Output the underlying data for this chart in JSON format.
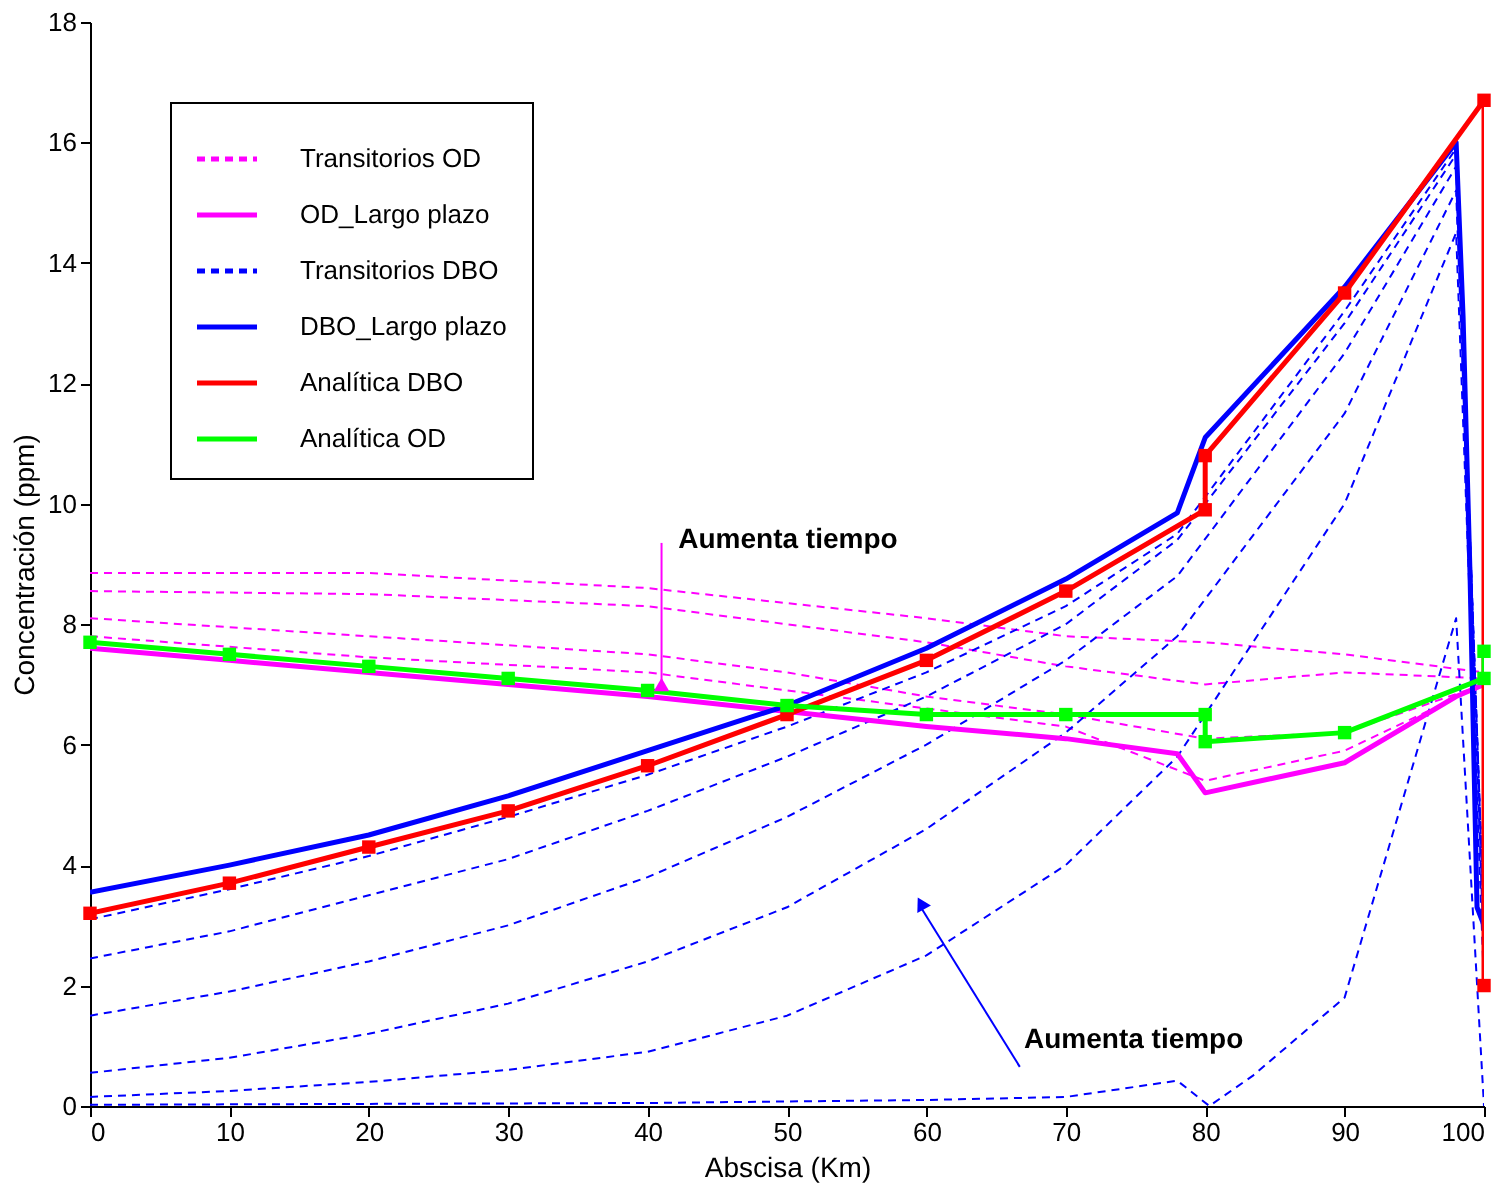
{
  "chart_data": {
    "type": "line",
    "xlabel": "Abscisa (Km)",
    "ylabel": "Concentración (ppm)",
    "xlim": [
      0,
      100
    ],
    "ylim": [
      0,
      18
    ],
    "xticks": [
      0,
      10,
      20,
      30,
      40,
      50,
      60,
      70,
      80,
      90,
      100
    ],
    "yticks": [
      0,
      2,
      4,
      6,
      8,
      10,
      12,
      14,
      16,
      18
    ],
    "grid": false,
    "legend": "top left",
    "marker": "none",
    "annotations": [
      {
        "text": "Aumenta tiempo",
        "x": 41,
        "y": 7.0
      },
      {
        "text": "Aumenta tiempo",
        "x": 59.6,
        "y": 3.3
      }
    ],
    "series": [
      {
        "name": "Transitorios OD",
        "color": "#ff00ff",
        "line_style": "dashed",
        "x": [
          0,
          20,
          40,
          60,
          70,
          80,
          90,
          100
        ],
        "values": [
          8.85,
          8.85,
          8.6,
          8.1,
          7.8,
          7.7,
          7.5,
          7.2
        ]
      },
      {
        "color": "#ff00ff",
        "line_style": "dashed",
        "x": [
          0,
          20,
          40,
          60,
          70,
          80,
          90,
          100
        ],
        "values": [
          8.55,
          8.5,
          8.3,
          7.7,
          7.3,
          7.0,
          7.2,
          7.1
        ]
      },
      {
        "color": "#ff00ff",
        "line_style": "dashed",
        "x": [
          0,
          20,
          40,
          50,
          60,
          70,
          80,
          90,
          100
        ],
        "values": [
          8.1,
          7.8,
          7.5,
          7.2,
          6.8,
          6.5,
          6.1,
          6.2,
          7.0
        ]
      },
      {
        "color": "#ff00ff",
        "line_style": "dashed",
        "x": [
          0,
          20,
          40,
          50,
          60,
          70,
          80,
          90,
          100
        ],
        "values": [
          7.8,
          7.45,
          7.2,
          6.9,
          6.6,
          6.3,
          5.4,
          5.9,
          7.0
        ]
      },
      {
        "name": "OD_Largo plazo",
        "color": "#ff00ff",
        "line_style": "solid",
        "x": [
          0,
          10,
          20,
          30,
          40,
          50,
          60,
          70,
          78,
          80,
          90,
          98,
          100
        ],
        "values": [
          7.6,
          7.4,
          7.2,
          7.0,
          6.8,
          6.55,
          6.3,
          6.1,
          5.85,
          5.2,
          5.7,
          6.8,
          7.0
        ]
      },
      {
        "name": "Transitorios DBO",
        "color": "#0000ff",
        "line_style": "dashed",
        "x": [
          0,
          10,
          20,
          30,
          40,
          50,
          60,
          70,
          78,
          90,
          98,
          100
        ],
        "values": [
          3.1,
          3.6,
          4.15,
          4.8,
          5.5,
          6.3,
          7.2,
          8.3,
          9.5,
          13.2,
          15.9,
          3.0
        ]
      },
      {
        "color": "#0000ff",
        "line_style": "dashed",
        "x": [
          0,
          10,
          20,
          30,
          40,
          50,
          60,
          70,
          78,
          90,
          98,
          100
        ],
        "values": [
          2.45,
          2.9,
          3.5,
          4.1,
          4.9,
          5.8,
          6.8,
          8.0,
          9.4,
          13.0,
          15.8,
          3.0
        ]
      },
      {
        "color": "#0000ff",
        "line_style": "dashed",
        "x": [
          0,
          10,
          20,
          30,
          40,
          50,
          60,
          70,
          78,
          90,
          98,
          100
        ],
        "values": [
          1.5,
          1.9,
          2.4,
          3.0,
          3.8,
          4.8,
          6.0,
          7.4,
          8.8,
          12.5,
          15.6,
          3.0
        ]
      },
      {
        "color": "#0000ff",
        "line_style": "dashed",
        "x": [
          0,
          10,
          20,
          30,
          40,
          50,
          60,
          70,
          78,
          90,
          98,
          100
        ],
        "values": [
          0.55,
          0.8,
          1.2,
          1.7,
          2.4,
          3.3,
          4.6,
          6.2,
          7.8,
          11.5,
          15.2,
          2.5
        ]
      },
      {
        "color": "#0000ff",
        "line_style": "dashed",
        "x": [
          0,
          10,
          20,
          30,
          40,
          50,
          60,
          70,
          78,
          90,
          98,
          100
        ],
        "values": [
          0.15,
          0.25,
          0.4,
          0.6,
          0.9,
          1.5,
          2.5,
          4.0,
          5.8,
          10.0,
          14.5,
          2.0
        ]
      },
      {
        "color": "#0000ff",
        "line_style": "dashed",
        "x": [
          0,
          40,
          60,
          70,
          78,
          80.3,
          83.4,
          90,
          98,
          100
        ],
        "values": [
          0.02,
          0.05,
          0.1,
          0.15,
          0.42,
          0.0,
          0.5,
          1.8,
          8.1,
          0.0
        ]
      },
      {
        "name": "DBO_Largo plazo",
        "color": "#0000ff",
        "line_style": "solid",
        "x": [
          0,
          10,
          20,
          30,
          40,
          50,
          60,
          70,
          78,
          80,
          90,
          98,
          98.5,
          99,
          99.5,
          100
        ],
        "values": [
          3.55,
          4.0,
          4.5,
          5.15,
          5.9,
          6.65,
          7.6,
          8.75,
          9.85,
          11.1,
          13.6,
          16.0,
          13.1,
          8.8,
          3.3,
          3.0
        ]
      },
      {
        "name": "Analítica DBO",
        "color": "#ff0000",
        "line_style": "solid",
        "marker": "square",
        "x": [
          0,
          10,
          20,
          30,
          40,
          50,
          60,
          70,
          80,
          80,
          90,
          100,
          100
        ],
        "values": [
          3.2,
          3.7,
          4.3,
          4.9,
          5.65,
          6.5,
          7.4,
          8.55,
          9.9,
          10.8,
          13.5,
          16.7,
          2.0
        ]
      },
      {
        "name": "Analítica OD",
        "color": "#00ff00",
        "line_style": "solid",
        "marker": "square",
        "x": [
          0,
          10,
          20,
          30,
          40,
          50,
          60,
          70,
          80,
          80,
          90,
          100,
          100
        ],
        "values": [
          7.7,
          7.5,
          7.3,
          7.1,
          6.9,
          6.65,
          6.5,
          6.5,
          6.5,
          6.05,
          6.2,
          7.1,
          7.55
        ]
      }
    ]
  }
}
